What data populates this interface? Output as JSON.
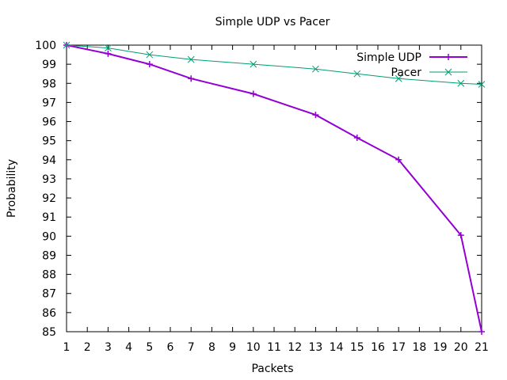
{
  "chart_data": {
    "type": "line",
    "title": "Simple UDP vs Pacer",
    "xlabel": "Packets",
    "ylabel": "Probability",
    "xlim": [
      1,
      21
    ],
    "ylim": [
      85,
      100
    ],
    "xticks": [
      1,
      2,
      3,
      4,
      5,
      6,
      7,
      8,
      9,
      10,
      11,
      12,
      13,
      14,
      15,
      16,
      17,
      18,
      19,
      20,
      21
    ],
    "yticks": [
      85,
      86,
      87,
      88,
      89,
      90,
      91,
      92,
      93,
      94,
      95,
      96,
      97,
      98,
      99,
      100
    ],
    "grid": false,
    "legend_position": "top-right",
    "series": [
      {
        "name": "Simple UDP",
        "color": "#9400d3",
        "marker": "plus",
        "x": [
          1,
          3,
          5,
          7,
          10,
          13,
          15,
          17,
          20,
          21
        ],
        "values": [
          100,
          99.55,
          99.0,
          98.25,
          97.45,
          96.35,
          95.15,
          94.0,
          90.05,
          85.0
        ]
      },
      {
        "name": "Pacer",
        "color": "#009e73",
        "marker": "cross",
        "x": [
          1,
          3,
          5,
          7,
          10,
          13,
          15,
          17,
          20,
          21
        ],
        "values": [
          100,
          99.85,
          99.5,
          99.25,
          99.0,
          98.75,
          98.5,
          98.25,
          98.0,
          97.95
        ]
      }
    ]
  }
}
